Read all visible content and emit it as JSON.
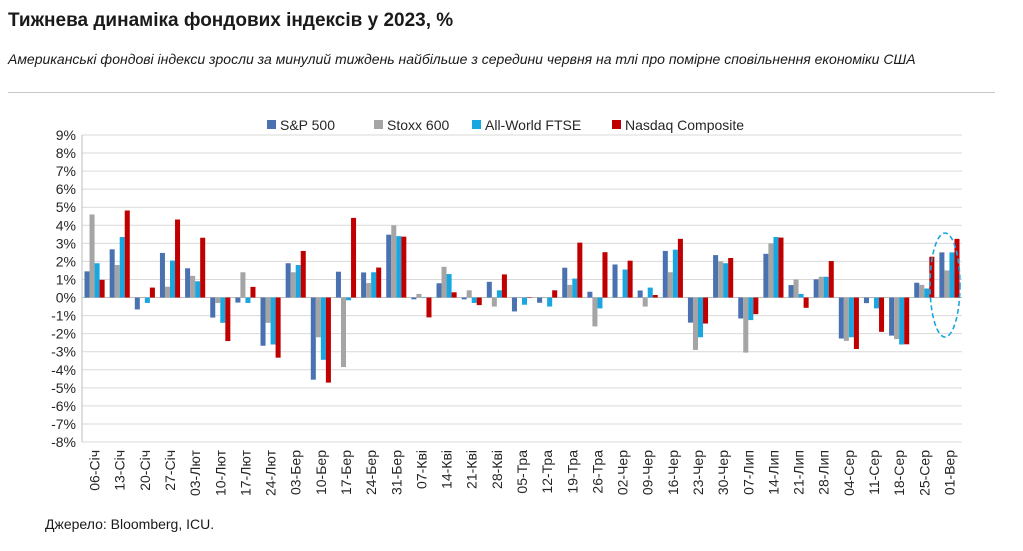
{
  "title": "Тижнева динаміка фондових індексів у 2023, %",
  "subtitle": "Американські фондові індекси зросли за минулий тиждень найбільше з середини червня на тлі про помірне сповільнення економіки США",
  "source": "Джерело: Bloomberg, ICU.",
  "colors": {
    "sp500": "#4a72b0",
    "stoxx": "#a5a5a5",
    "ftse": "#1aa7e0",
    "nasdaq": "#c00000",
    "grid": "#d9d9d9",
    "highlight": "#1aa7e0"
  },
  "chart_data": {
    "type": "bar",
    "title": "Тижнева динаміка фондових індексів у 2023, %",
    "xlabel": "",
    "ylabel": "",
    "ylim": [
      -8,
      9
    ],
    "grid": true,
    "legend_position": "top",
    "y_ticks": [
      "-8%",
      "-7%",
      "-6%",
      "-5%",
      "-4%",
      "-3%",
      "-2%",
      "-1%",
      "0%",
      "1%",
      "2%",
      "3%",
      "4%",
      "5%",
      "6%",
      "7%",
      "8%",
      "9%"
    ],
    "categories": [
      "06-Січ",
      "13-Січ",
      "20-Січ",
      "27-Січ",
      "03-Лют",
      "10-Лют",
      "17-Лют",
      "24-Лют",
      "03-Бер",
      "10-Бер",
      "17-Бер",
      "24-Бер",
      "31-Бер",
      "07-Кві",
      "14-Кві",
      "21-Кві",
      "28-Кві",
      "05-Тра",
      "12-Тра",
      "19-Тра",
      "26-Тра",
      "02-Чер",
      "09-Чер",
      "16-Чер",
      "23-Чер",
      "30-Чер",
      "07-Лип",
      "14-Лип",
      "21-Лип",
      "28-Лип",
      "04-Сер",
      "11-Сер",
      "18-Сер",
      "25-Сер",
      "01-Вер"
    ],
    "series": [
      {
        "name": "S&P 500",
        "values": [
          1.45,
          2.67,
          -0.66,
          2.47,
          1.62,
          -1.11,
          -0.28,
          -2.67,
          1.9,
          -4.55,
          1.43,
          1.39,
          3.48,
          -0.1,
          0.79,
          -0.1,
          0.87,
          -0.77,
          -0.29,
          1.65,
          0.32,
          1.83,
          0.39,
          2.58,
          -1.39,
          2.35,
          -1.16,
          2.42,
          0.69,
          1.01,
          -2.27,
          -0.31,
          -2.11,
          0.82,
          2.5
        ]
      },
      {
        "name": "Stoxx 600",
        "values": [
          4.6,
          1.8,
          0.0,
          0.6,
          1.2,
          -0.3,
          1.4,
          -1.4,
          1.4,
          -2.2,
          -3.85,
          0.8,
          4.0,
          0.2,
          1.7,
          0.4,
          -0.5,
          0.0,
          0.0,
          0.7,
          -1.6,
          0.0,
          -0.5,
          1.4,
          -2.9,
          2.0,
          -3.05,
          3.0,
          1.0,
          1.15,
          -2.4,
          0.0,
          -2.3,
          0.7,
          1.5
        ]
      },
      {
        "name": "All-World FTSE",
        "values": [
          1.9,
          3.35,
          -0.3,
          2.05,
          0.9,
          -1.4,
          -0.3,
          -2.6,
          1.8,
          -3.45,
          -0.15,
          1.4,
          3.4,
          0.0,
          1.3,
          -0.3,
          0.4,
          -0.4,
          -0.5,
          1.05,
          -0.6,
          1.55,
          0.55,
          2.65,
          -2.2,
          1.9,
          -1.25,
          3.35,
          0.2,
          1.15,
          -2.2,
          -0.6,
          -2.6,
          0.5,
          2.5
        ]
      },
      {
        "name": "Nasdaq Composite",
        "values": [
          0.98,
          4.82,
          0.55,
          4.32,
          3.31,
          -2.41,
          0.59,
          -3.33,
          2.58,
          -4.71,
          4.41,
          1.66,
          3.37,
          -1.1,
          0.29,
          -0.42,
          1.28,
          0.0,
          0.4,
          3.04,
          2.51,
          2.04,
          0.14,
          3.25,
          -1.44,
          2.19,
          -0.92,
          3.32,
          -0.57,
          2.02,
          -2.85,
          -1.9,
          -2.59,
          2.26,
          3.25
        ]
      }
    ]
  }
}
